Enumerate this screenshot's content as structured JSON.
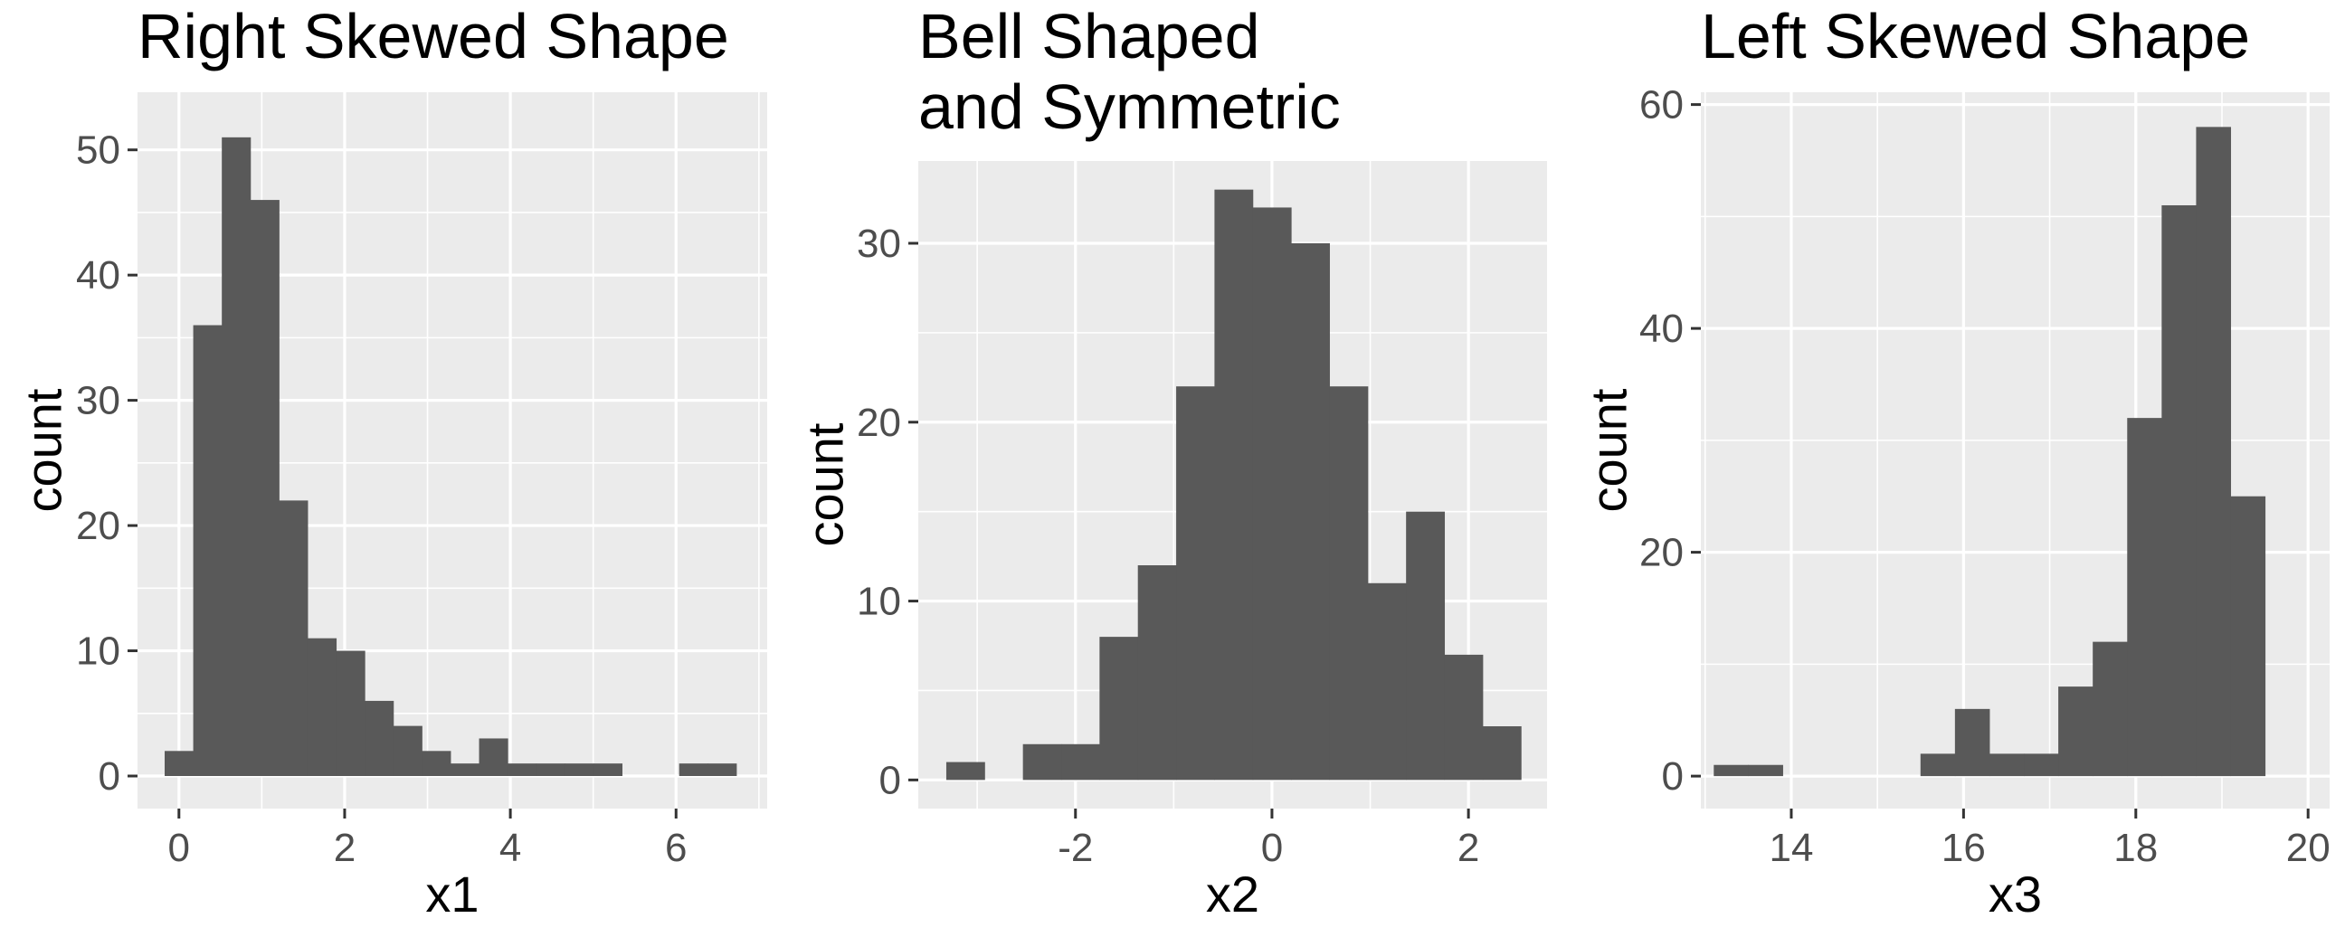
{
  "chart_data": [
    {
      "type": "bar",
      "title": [
        "Right Skewed Shape"
      ],
      "xlabel": "x1",
      "ylabel": "count",
      "xlim": [
        -0.5,
        7.1
      ],
      "ylim": [
        -2.6,
        54.6
      ],
      "xticks": [
        0,
        2,
        4,
        6
      ],
      "xtick_labels": [
        "0",
        "2",
        "4",
        "6"
      ],
      "yticks": [
        0,
        10,
        20,
        30,
        40,
        50
      ],
      "ytick_labels": [
        "0",
        "10",
        "20",
        "30",
        "40",
        "50"
      ],
      "binwidth": 0.345,
      "bins": [
        {
          "x": 0.0,
          "count": 2
        },
        {
          "x": 0.345,
          "count": 36
        },
        {
          "x": 0.69,
          "count": 51
        },
        {
          "x": 1.035,
          "count": 46
        },
        {
          "x": 1.38,
          "count": 22
        },
        {
          "x": 1.725,
          "count": 11
        },
        {
          "x": 2.07,
          "count": 10
        },
        {
          "x": 2.415,
          "count": 6
        },
        {
          "x": 2.76,
          "count": 4
        },
        {
          "x": 3.105,
          "count": 2
        },
        {
          "x": 3.45,
          "count": 1
        },
        {
          "x": 3.795,
          "count": 3
        },
        {
          "x": 4.14,
          "count": 1
        },
        {
          "x": 4.485,
          "count": 1
        },
        {
          "x": 4.83,
          "count": 1
        },
        {
          "x": 5.175,
          "count": 1
        },
        {
          "x": 5.52,
          "count": 0
        },
        {
          "x": 5.865,
          "count": 0
        },
        {
          "x": 6.21,
          "count": 1
        },
        {
          "x": 6.555,
          "count": 1
        }
      ],
      "grid": true,
      "colors": {
        "bar": "#595959",
        "panel": "#ebebeb",
        "grid": "#ffffff"
      }
    },
    {
      "type": "bar",
      "title": [
        "Bell Shaped",
        "and Symmetric"
      ],
      "xlabel": "x2",
      "ylabel": "count",
      "xlim": [
        -3.6,
        2.8
      ],
      "ylim": [
        -1.6,
        34.6
      ],
      "xticks": [
        -2,
        0,
        2
      ],
      "xtick_labels": [
        "-2",
        "0",
        "2"
      ],
      "yticks": [
        0,
        10,
        20,
        30
      ],
      "ytick_labels": [
        "0",
        "10",
        "20",
        "30"
      ],
      "binwidth": 0.39,
      "bins": [
        {
          "x": -3.12,
          "count": 1
        },
        {
          "x": -2.73,
          "count": 0
        },
        {
          "x": -2.34,
          "count": 2
        },
        {
          "x": -1.95,
          "count": 2
        },
        {
          "x": -1.56,
          "count": 8
        },
        {
          "x": -1.17,
          "count": 12
        },
        {
          "x": -0.78,
          "count": 22
        },
        {
          "x": -0.39,
          "count": 33
        },
        {
          "x": 0.0,
          "count": 32
        },
        {
          "x": 0.39,
          "count": 30
        },
        {
          "x": 0.78,
          "count": 22
        },
        {
          "x": 1.17,
          "count": 11
        },
        {
          "x": 1.56,
          "count": 15
        },
        {
          "x": 1.95,
          "count": 7
        },
        {
          "x": 2.34,
          "count": 3
        }
      ],
      "grid": true,
      "colors": {
        "bar": "#595959",
        "panel": "#ebebeb",
        "grid": "#ffffff"
      }
    },
    {
      "type": "bar",
      "title": [
        "Left Skewed Shape"
      ],
      "xlabel": "x3",
      "ylabel": "count",
      "xlim": [
        12.95,
        20.25
      ],
      "ylim": [
        -2.9,
        61.1
      ],
      "xticks": [
        14,
        16,
        18,
        20
      ],
      "xtick_labels": [
        "14",
        "16",
        "18",
        "20"
      ],
      "yticks": [
        0,
        20,
        40,
        60
      ],
      "ytick_labels": [
        "0",
        "20",
        "40",
        "60"
      ],
      "binwidth": 0.4,
      "bins": [
        {
          "x": 13.3,
          "count": 1
        },
        {
          "x": 13.7,
          "count": 1
        },
        {
          "x": 14.1,
          "count": 0
        },
        {
          "x": 14.5,
          "count": 0
        },
        {
          "x": 14.9,
          "count": 0
        },
        {
          "x": 15.3,
          "count": 0
        },
        {
          "x": 15.7,
          "count": 2
        },
        {
          "x": 16.1,
          "count": 6
        },
        {
          "x": 16.5,
          "count": 2
        },
        {
          "x": 16.9,
          "count": 2
        },
        {
          "x": 17.3,
          "count": 8
        },
        {
          "x": 17.7,
          "count": 12
        },
        {
          "x": 18.1,
          "count": 32
        },
        {
          "x": 18.5,
          "count": 51
        },
        {
          "x": 18.9,
          "count": 58
        },
        {
          "x": 19.3,
          "count": 25
        }
      ],
      "grid": true,
      "colors": {
        "bar": "#595959",
        "panel": "#ebebeb",
        "grid": "#ffffff"
      }
    }
  ]
}
